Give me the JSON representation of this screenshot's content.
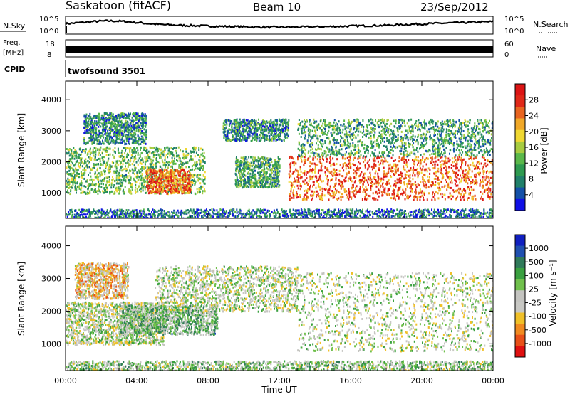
{
  "header": {
    "title": "Saskatoon (fitACF)",
    "beam": "Beam 10",
    "date": "23/Sep/2012"
  },
  "top_panels": {
    "nsky_label": "N.Sky",
    "nsearch_label": "N.Search",
    "noise_ticks": [
      "10^5",
      "10^0"
    ],
    "freq_label_line1": "Freq.",
    "freq_label_line2": "[MHz]",
    "freq_ticks": [
      "18",
      "8"
    ],
    "nave_ticks": [
      "60",
      "0"
    ],
    "nave_label": "Nave",
    "cpid_label": "CPID",
    "cpid_value": "twofsound 3501"
  },
  "colorbars": {
    "power": {
      "label": "Power [dB]",
      "ticks": [
        "28",
        "24",
        "20",
        "16",
        "12",
        "8",
        "4"
      ],
      "colors": [
        "#1010e6",
        "#1450a8",
        "#20806a",
        "#2e9a50",
        "#5ab84a",
        "#a8cc40",
        "#f0d832",
        "#f0a828",
        "#e86420",
        "#e02818",
        "#dc1414"
      ]
    },
    "velocity": {
      "label": "Velocity [m s⁻¹]",
      "ticks": [
        "1000",
        "500",
        "100",
        "25",
        "-25",
        "-100",
        "-500",
        "-1000"
      ],
      "colors": [
        "#1020c0",
        "#2050b0",
        "#307a5a",
        "#3aa040",
        "#70c04c",
        "#c4c4c0",
        "#c8c8c4",
        "#f0c028",
        "#f08a20",
        "#e85018",
        "#e01010"
      ]
    }
  },
  "axes": {
    "ylabel": "Slant Range [km]",
    "xlabel": "Time UT",
    "yticks": [
      "1000",
      "2000",
      "3000",
      "4000"
    ],
    "xticks": [
      "00:00",
      "04:00",
      "08:00",
      "12:00",
      "16:00",
      "20:00",
      "00:00"
    ]
  },
  "chart_data": [
    {
      "type": "heatmap",
      "title": "",
      "quantity": "Power",
      "xlabel": "Time UT",
      "ylabel": "Slant Range [km]",
      "xlim": [
        0,
        24
      ],
      "ylim": [
        180,
        4600
      ],
      "colorbar_label": "Power [dB]",
      "colorbar_range": [
        0,
        30
      ],
      "regions": [
        {
          "t_start": 0.0,
          "t_end": 7.8,
          "range_start": 1000,
          "range_end": 2500,
          "typical_value": 12
        },
        {
          "t_start": 4.5,
          "t_end": 7.0,
          "range_start": 1000,
          "range_end": 1800,
          "typical_value": 24
        },
        {
          "t_start": 1.0,
          "t_end": 4.5,
          "range_start": 2600,
          "range_end": 3600,
          "typical_value": 8
        },
        {
          "t_start": 9.5,
          "t_end": 12.0,
          "range_start": 1200,
          "range_end": 2200,
          "typical_value": 10
        },
        {
          "t_start": 8.8,
          "t_end": 12.5,
          "range_start": 2700,
          "range_end": 3400,
          "typical_value": 8
        },
        {
          "t_start": 12.5,
          "t_end": 24.0,
          "range_start": 800,
          "range_end": 2200,
          "typical_value": 24
        },
        {
          "t_start": 13.0,
          "t_end": 24.0,
          "range_start": 2200,
          "range_end": 3400,
          "typical_value": 10
        },
        {
          "t_start": 0.0,
          "t_end": 24.0,
          "range_start": 200,
          "range_end": 500,
          "typical_value": 6
        }
      ]
    },
    {
      "type": "heatmap",
      "title": "",
      "quantity": "Velocity",
      "xlabel": "Time UT",
      "ylabel": "Slant Range [km]",
      "xlim": [
        0,
        24
      ],
      "ylim": [
        180,
        4600
      ],
      "colorbar_label": "Velocity [m s⁻¹]",
      "colorbar_range": [
        -1000,
        1000
      ],
      "regions": [
        {
          "t_start": 0.0,
          "t_end": 5.5,
          "range_start": 1000,
          "range_end": 2300,
          "typical_value": 0
        },
        {
          "t_start": 3.0,
          "t_end": 8.5,
          "range_start": 1300,
          "range_end": 2200,
          "typical_value": 200
        },
        {
          "t_start": 5.0,
          "t_end": 13.0,
          "range_start": 2000,
          "range_end": 3400,
          "typical_value": 0
        },
        {
          "t_start": 13.0,
          "t_end": 24.0,
          "range_start": 800,
          "range_end": 3200,
          "typical_value": 0
        },
        {
          "t_start": 0.5,
          "t_end": 3.5,
          "range_start": 2400,
          "range_end": 3500,
          "typical_value": -300
        },
        {
          "t_start": 0.0,
          "t_end": 24.0,
          "range_start": 200,
          "range_end": 500,
          "typical_value": 100
        }
      ]
    }
  ]
}
